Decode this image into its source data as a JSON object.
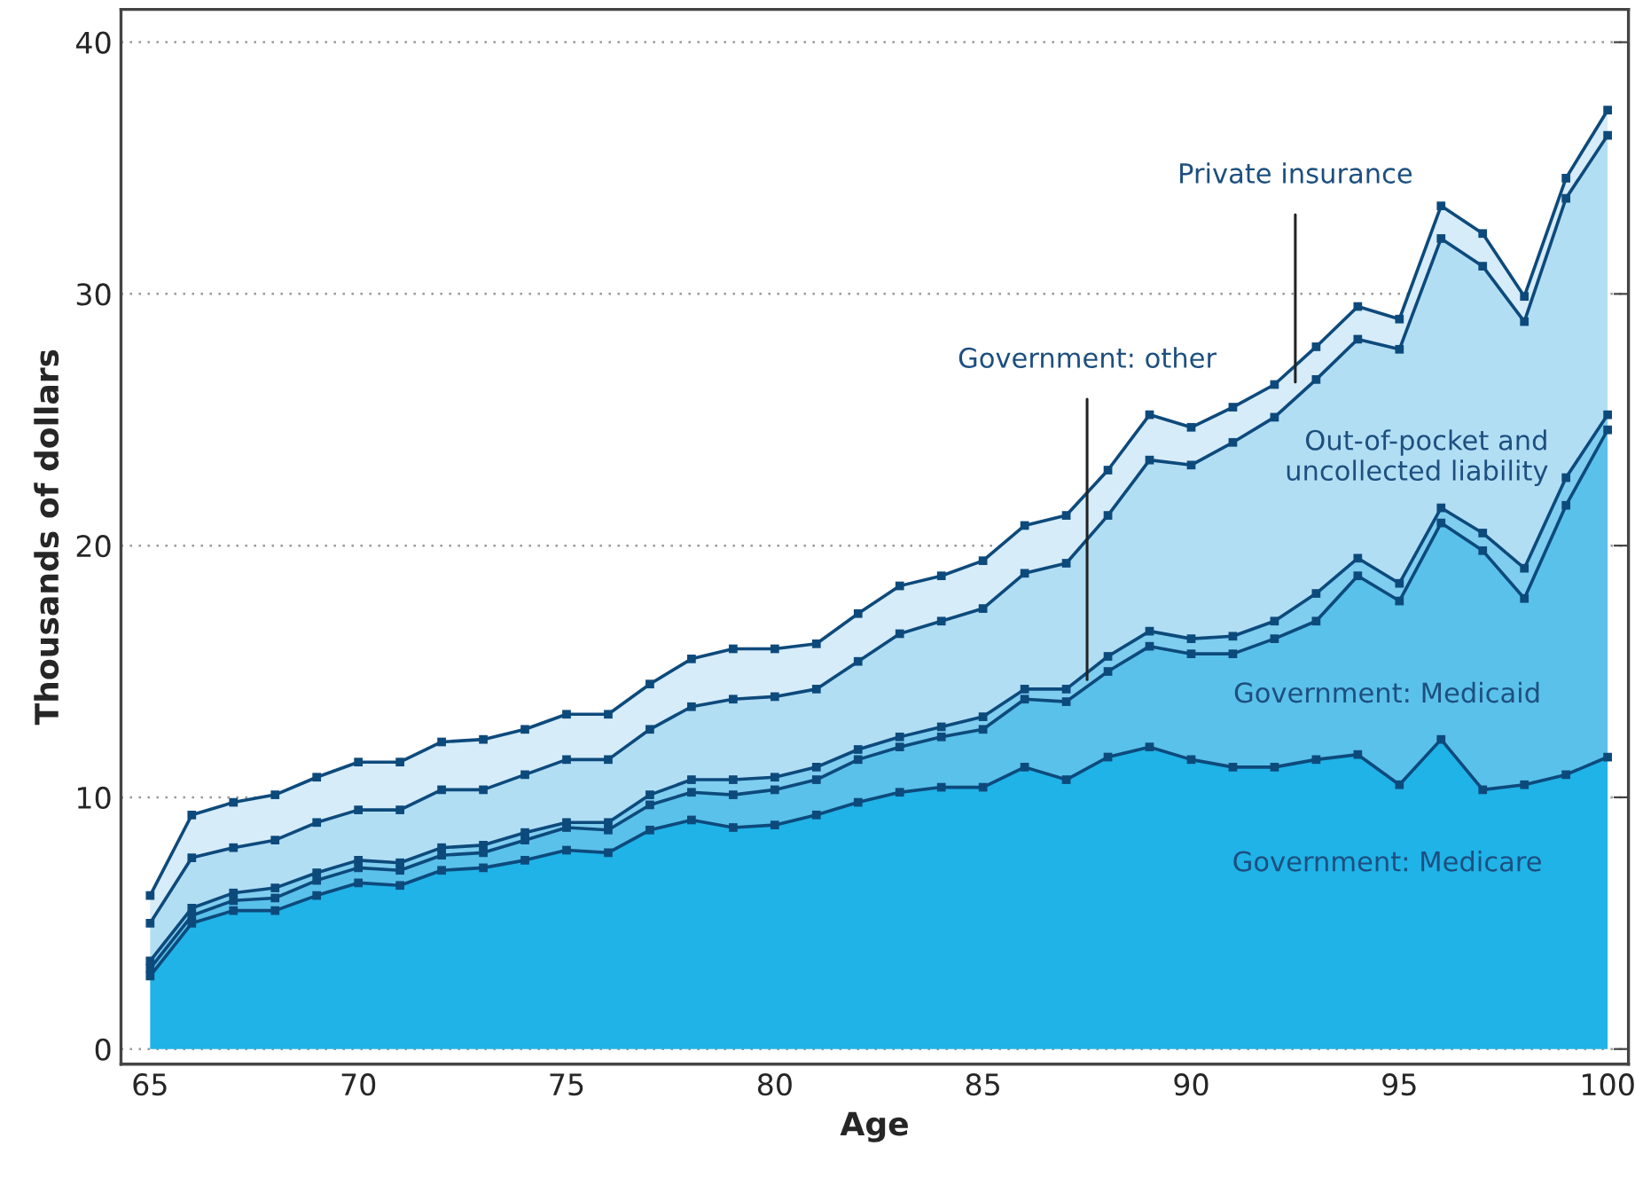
{
  "chart_data": {
    "type": "area",
    "stacked": true,
    "xlabel": "Age",
    "ylabel": "Thousands of dollars",
    "x": [
      65,
      66,
      67,
      68,
      69,
      70,
      71,
      72,
      73,
      74,
      75,
      76,
      77,
      78,
      79,
      80,
      81,
      82,
      83,
      84,
      85,
      86,
      87,
      88,
      89,
      90,
      91,
      92,
      93,
      94,
      95,
      96,
      97,
      98,
      99,
      100
    ],
    "series": [
      {
        "name": "Government: Medicare",
        "color": "#1fb3e8",
        "values": [
          2.9,
          5.0,
          5.5,
          5.5,
          6.1,
          6.6,
          6.5,
          7.1,
          7.2,
          7.5,
          7.9,
          7.8,
          8.7,
          9.1,
          8.8,
          8.9,
          9.3,
          9.8,
          10.2,
          10.4,
          10.4,
          11.2,
          10.7,
          11.6,
          12.0,
          11.5,
          11.2,
          11.2,
          11.5,
          11.7,
          10.5,
          12.3,
          10.3,
          10.5,
          10.9,
          11.6
        ]
      },
      {
        "name": "Government: Medicaid",
        "color": "#5ac1ea",
        "values": [
          0.3,
          0.3,
          0.4,
          0.5,
          0.6,
          0.6,
          0.6,
          0.6,
          0.6,
          0.8,
          0.9,
          0.9,
          1.0,
          1.1,
          1.3,
          1.4,
          1.4,
          1.7,
          1.8,
          2.0,
          2.3,
          2.7,
          3.1,
          3.4,
          4.0,
          4.2,
          4.5,
          5.1,
          5.5,
          7.1,
          7.3,
          8.6,
          9.5,
          7.4,
          10.7,
          13.0
        ]
      },
      {
        "name": "Government: other",
        "color": "#7fcdef",
        "values": [
          0.3,
          0.3,
          0.3,
          0.4,
          0.3,
          0.3,
          0.3,
          0.3,
          0.3,
          0.3,
          0.2,
          0.3,
          0.4,
          0.5,
          0.6,
          0.5,
          0.5,
          0.4,
          0.4,
          0.4,
          0.5,
          0.4,
          0.5,
          0.6,
          0.6,
          0.6,
          0.7,
          0.7,
          1.1,
          0.7,
          0.7,
          0.6,
          0.7,
          1.2,
          1.1,
          0.6
        ]
      },
      {
        "name": "Out-of-pocket and\nuncollected liability",
        "color": "#b2def4",
        "values": [
          1.5,
          2.0,
          1.8,
          1.9,
          2.0,
          2.0,
          2.1,
          2.3,
          2.2,
          2.3,
          2.5,
          2.5,
          2.6,
          2.9,
          3.2,
          3.2,
          3.1,
          3.5,
          4.1,
          4.2,
          4.3,
          4.6,
          5.0,
          5.6,
          6.8,
          6.9,
          7.7,
          8.1,
          8.5,
          8.7,
          9.3,
          10.7,
          10.6,
          9.8,
          11.1,
          11.1
        ]
      },
      {
        "name": "Private insurance",
        "color": "#d6ecf9",
        "values": [
          1.1,
          1.7,
          1.8,
          1.8,
          1.8,
          1.9,
          1.9,
          1.9,
          2.0,
          1.8,
          1.8,
          1.8,
          1.8,
          1.9,
          2.0,
          1.9,
          1.8,
          1.9,
          1.9,
          1.8,
          1.9,
          1.9,
          1.9,
          1.8,
          1.8,
          1.5,
          1.4,
          1.3,
          1.3,
          1.3,
          1.2,
          1.3,
          1.3,
          1.0,
          0.8,
          1.0
        ]
      }
    ],
    "xlim": [
      64.3,
      100.5
    ],
    "xticks": [
      65,
      70,
      75,
      80,
      85,
      90,
      95,
      100
    ],
    "ylim": [
      -0.6,
      41.3
    ],
    "yticks": [
      0,
      10,
      20,
      30,
      40
    ],
    "grid": "y",
    "marker": "square",
    "line_style": "solid"
  }
}
